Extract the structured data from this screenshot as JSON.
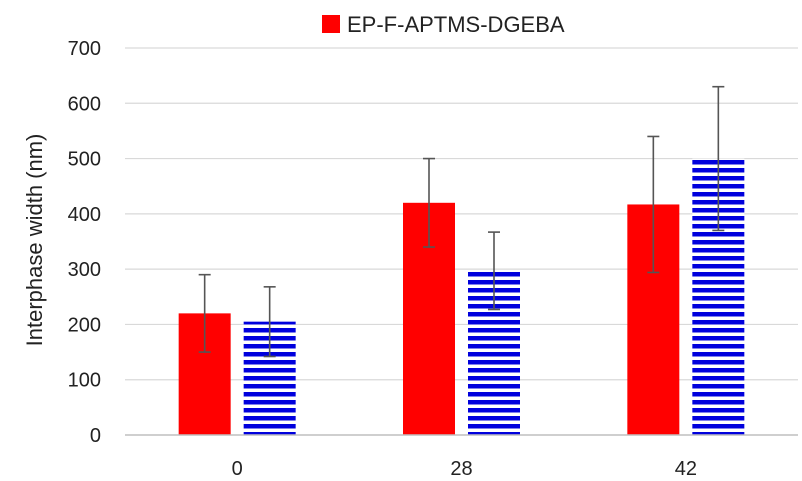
{
  "chart_data": {
    "type": "bar",
    "title": "",
    "xlabel": "",
    "ylabel": "Interphase width (nm)",
    "categories": [
      "0",
      "28",
      "42"
    ],
    "ylim": [
      0,
      700
    ],
    "yticks": [
      0,
      100,
      200,
      300,
      400,
      500,
      600,
      700
    ],
    "grid": true,
    "legend_position": "top",
    "series": [
      {
        "name": "EP-F-APTMS-DGEBA",
        "values": [
          220,
          420,
          417
        ],
        "error": [
          70,
          80,
          123
        ],
        "color": "#ff0000",
        "pattern": "solid"
      },
      {
        "values": [
          205,
          297,
          500
        ],
        "error": [
          63,
          70,
          130
        ],
        "color": "#0000dd",
        "pattern": "horizontal-stripes"
      }
    ]
  }
}
